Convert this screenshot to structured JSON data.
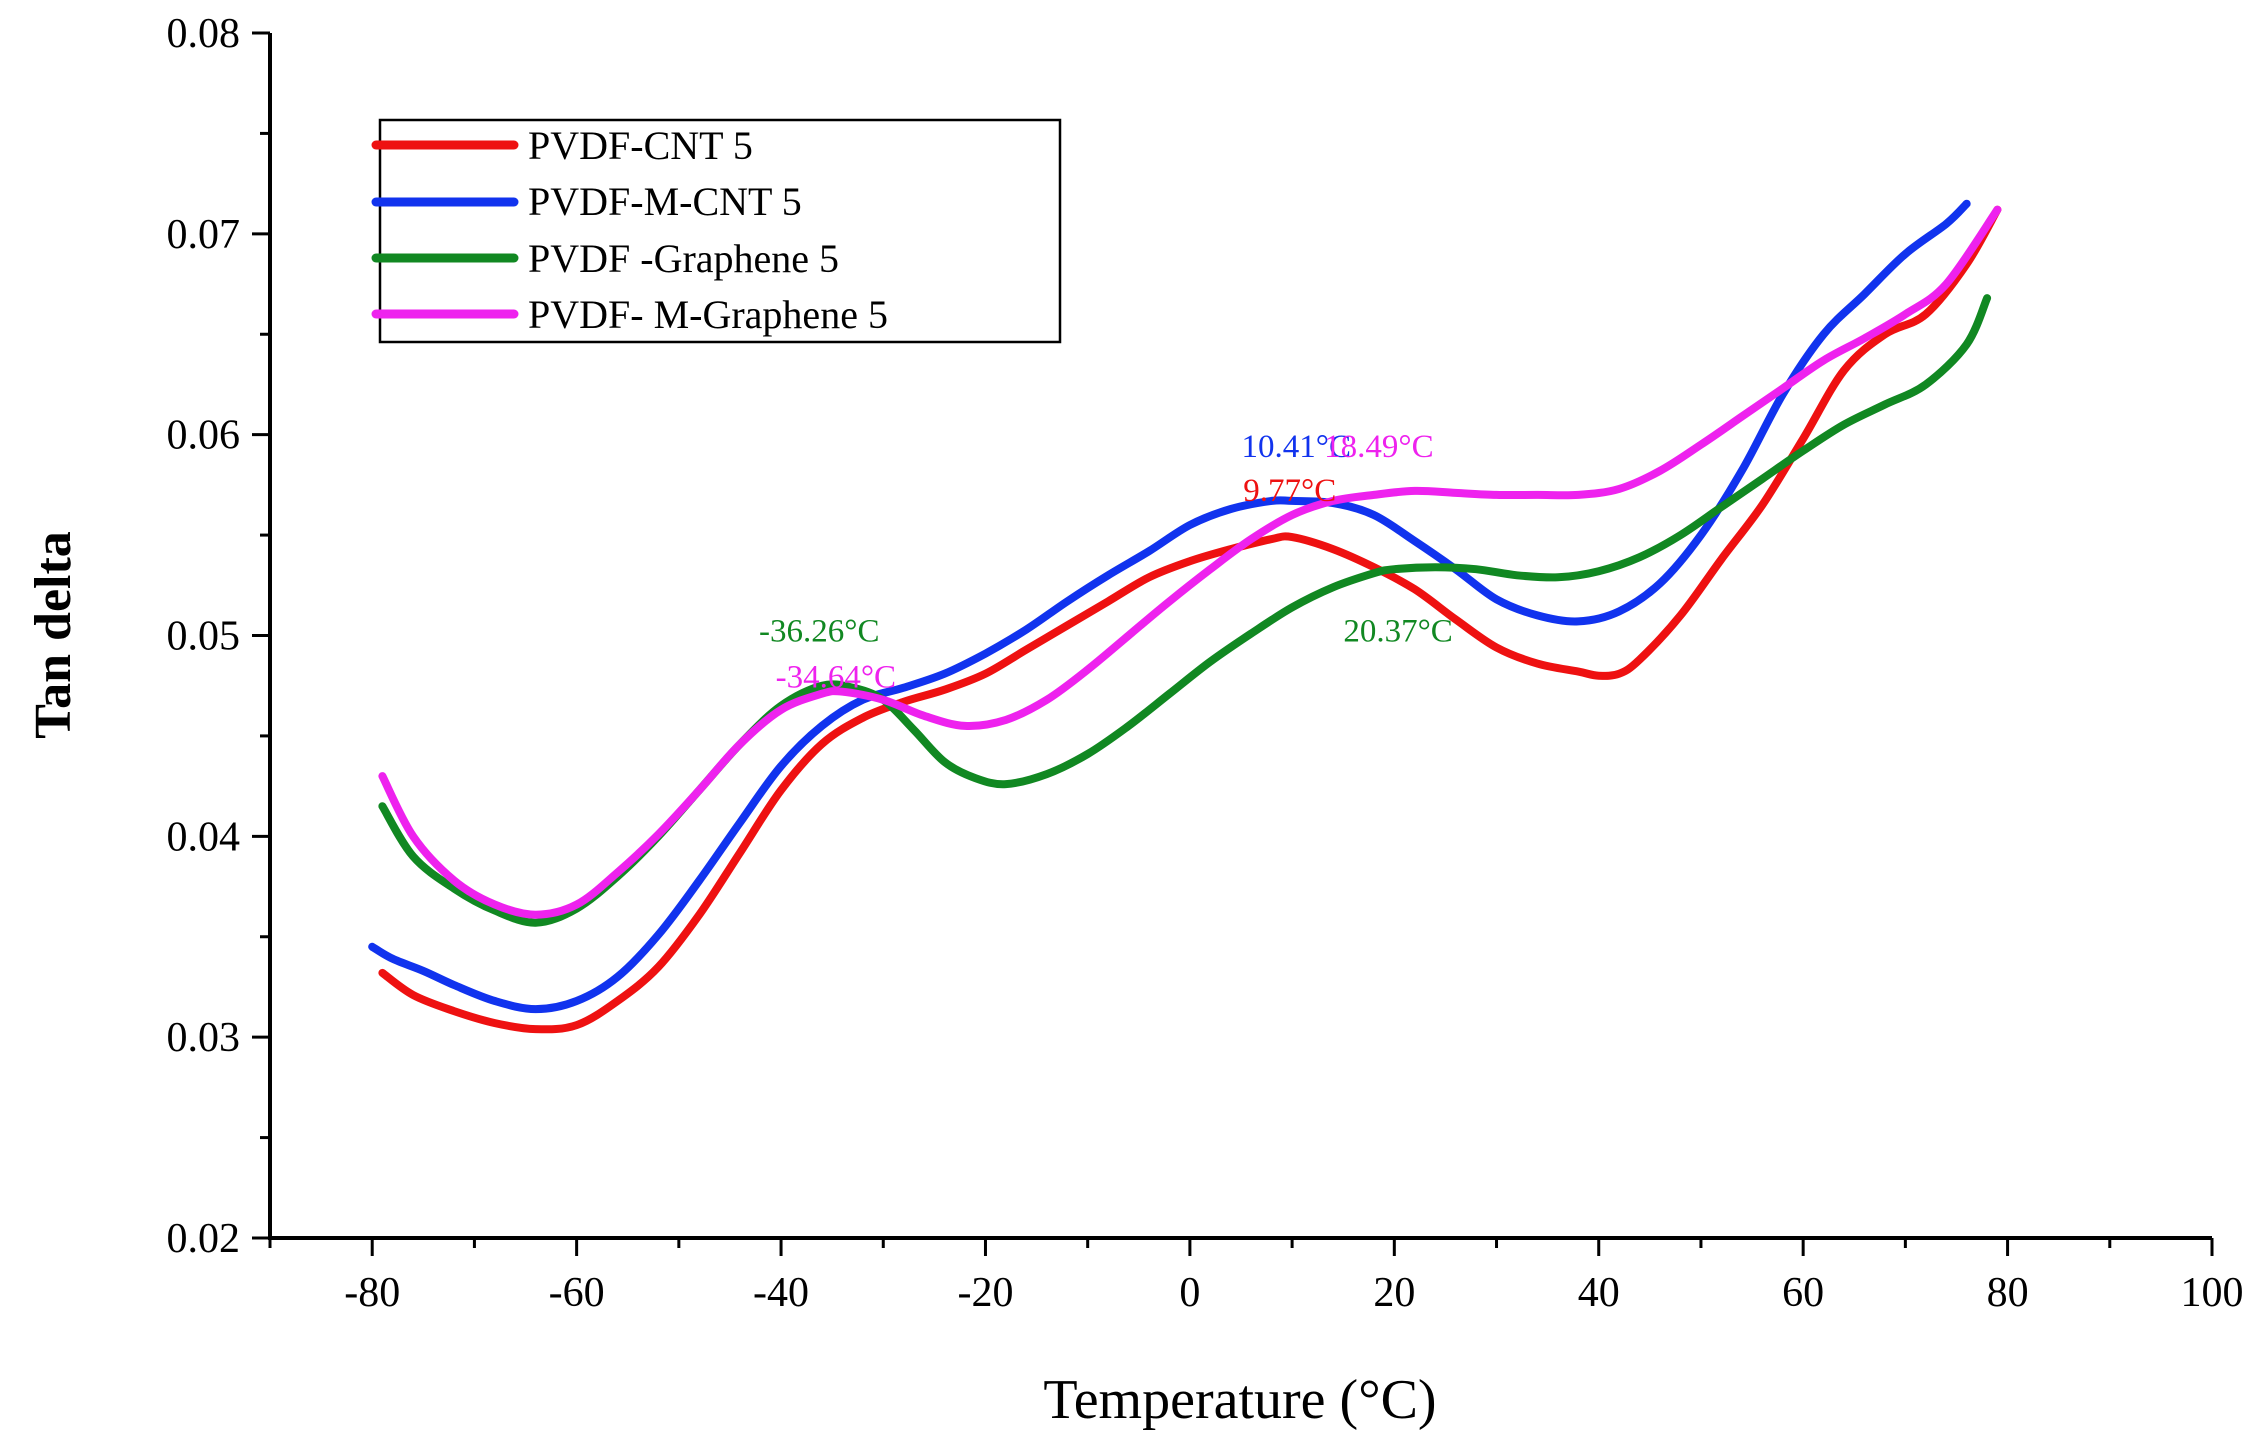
{
  "chart_data": {
    "type": "line",
    "title": "",
    "xlabel": "Temperature (°C)",
    "ylabel": "Tan delta",
    "xlim": [
      -90,
      100
    ],
    "ylim": [
      0.02,
      0.08
    ],
    "xticks": [
      -80,
      -60,
      -40,
      -20,
      0,
      20,
      40,
      60,
      80,
      100
    ],
    "yticks": [
      0.02,
      0.03,
      0.04,
      0.05,
      0.06,
      0.07,
      0.08
    ],
    "ytick_labels": [
      "0.02",
      "0.03",
      "0.04",
      "0.05",
      "0.06",
      "0.07",
      "0.08"
    ],
    "grid": false,
    "legend_position": "top-left",
    "series": [
      {
        "name": "PVDF-CNT 5",
        "color": "#ee1111",
        "x": [
          -79,
          -76,
          -72,
          -68,
          -64,
          -60,
          -56,
          -52,
          -48,
          -44,
          -40,
          -36,
          -32,
          -28,
          -24,
          -20,
          -16,
          -12,
          -8,
          -4,
          0,
          4,
          8,
          10,
          14,
          18,
          22,
          26,
          30,
          34,
          38,
          40,
          42,
          44,
          48,
          52,
          56,
          60,
          64,
          68,
          72,
          76,
          79
        ],
        "y": [
          0.0332,
          0.0321,
          0.0313,
          0.0307,
          0.0304,
          0.0306,
          0.0318,
          0.0335,
          0.0361,
          0.0392,
          0.0423,
          0.0446,
          0.0459,
          0.0467,
          0.0473,
          0.0481,
          0.0493,
          0.0505,
          0.0517,
          0.0529,
          0.0537,
          0.0543,
          0.0548,
          0.0549,
          0.0543,
          0.0534,
          0.0523,
          0.0508,
          0.0494,
          0.0486,
          0.0482,
          0.048,
          0.0481,
          0.0488,
          0.051,
          0.0538,
          0.0565,
          0.0598,
          0.0632,
          0.065,
          0.066,
          0.0685,
          0.0712
        ]
      },
      {
        "name": "PVDF-M-CNT 5",
        "color": "#1133ee",
        "x": [
          -80,
          -78,
          -75,
          -72,
          -68,
          -64,
          -60,
          -56,
          -52,
          -48,
          -44,
          -40,
          -36,
          -32,
          -28,
          -24,
          -20,
          -16,
          -12,
          -8,
          -4,
          0,
          4,
          8,
          10,
          14,
          18,
          22,
          26,
          30,
          34,
          38,
          42,
          46,
          50,
          54,
          58,
          62,
          66,
          70,
          74,
          76
        ],
        "y": [
          0.0345,
          0.0339,
          0.0333,
          0.0326,
          0.0318,
          0.0314,
          0.0318,
          0.033,
          0.0351,
          0.0378,
          0.0407,
          0.0435,
          0.0455,
          0.0468,
          0.0474,
          0.0481,
          0.0491,
          0.0503,
          0.0517,
          0.053,
          0.0542,
          0.0555,
          0.0563,
          0.0567,
          0.0567,
          0.0566,
          0.056,
          0.0547,
          0.0533,
          0.0518,
          0.051,
          0.0507,
          0.0512,
          0.0526,
          0.055,
          0.0582,
          0.062,
          0.065,
          0.067,
          0.069,
          0.0705,
          0.0715
        ]
      },
      {
        "name": "PVDF -Graphene 5",
        "color": "#118822",
        "x": [
          -79,
          -76,
          -72,
          -68,
          -64,
          -60,
          -56,
          -52,
          -48,
          -44,
          -40,
          -36,
          -33,
          -30,
          -27,
          -24,
          -21,
          -18,
          -14,
          -10,
          -6,
          -2,
          2,
          6,
          10,
          14,
          18,
          20,
          24,
          28,
          32,
          36,
          40,
          44,
          48,
          52,
          56,
          60,
          64,
          68,
          72,
          76,
          78
        ],
        "y": [
          0.0415,
          0.039,
          0.0374,
          0.0363,
          0.0357,
          0.0364,
          0.038,
          0.04,
          0.0423,
          0.0446,
          0.0465,
          0.0475,
          0.0474,
          0.0468,
          0.0453,
          0.0437,
          0.0429,
          0.0426,
          0.0431,
          0.0441,
          0.0455,
          0.0471,
          0.0487,
          0.0501,
          0.0514,
          0.0524,
          0.0531,
          0.0533,
          0.0534,
          0.0533,
          0.053,
          0.0529,
          0.0532,
          0.0539,
          0.055,
          0.0564,
          0.0578,
          0.0592,
          0.0605,
          0.0615,
          0.0625,
          0.0645,
          0.0668
        ]
      },
      {
        "name": "PVDF- M-Graphene 5",
        "color": "#ee22ee",
        "x": [
          -79,
          -76,
          -72,
          -68,
          -64,
          -60,
          -56,
          -52,
          -48,
          -44,
          -40,
          -36,
          -34,
          -30,
          -26,
          -22,
          -18,
          -14,
          -10,
          -6,
          -2,
          2,
          6,
          10,
          14,
          18,
          22,
          26,
          30,
          34,
          38,
          42,
          46,
          50,
          54,
          58,
          62,
          66,
          70,
          74,
          79
        ],
        "y": [
          0.043,
          0.04,
          0.0378,
          0.0366,
          0.0361,
          0.0366,
          0.0382,
          0.0401,
          0.0423,
          0.0446,
          0.0463,
          0.0471,
          0.0472,
          0.0468,
          0.046,
          0.0455,
          0.0458,
          0.0468,
          0.0483,
          0.05,
          0.0517,
          0.0533,
          0.0548,
          0.056,
          0.0567,
          0.057,
          0.0572,
          0.0571,
          0.057,
          0.057,
          0.057,
          0.0573,
          0.0582,
          0.0595,
          0.0609,
          0.0623,
          0.0637,
          0.0648,
          0.066,
          0.0675,
          0.0712
        ]
      }
    ],
    "annotations": [
      {
        "text": "9.77°C",
        "x": 9.77,
        "y": 0.0567,
        "color": "#ee1111"
      },
      {
        "text": "10.41°C",
        "x": 10.41,
        "y": 0.0589,
        "color": "#1133ee"
      },
      {
        "text": "18.49°C",
        "x": 18.49,
        "y": 0.0589,
        "color": "#ee22ee"
      },
      {
        "text": "-36.26°C",
        "x": -36.26,
        "y": 0.0497,
        "color": "#118822"
      },
      {
        "text": "-34.64°C",
        "x": -34.64,
        "y": 0.0474,
        "color": "#ee22ee"
      },
      {
        "text": "20.37°C",
        "x": 20.37,
        "y": 0.0497,
        "color": "#118822"
      }
    ]
  }
}
